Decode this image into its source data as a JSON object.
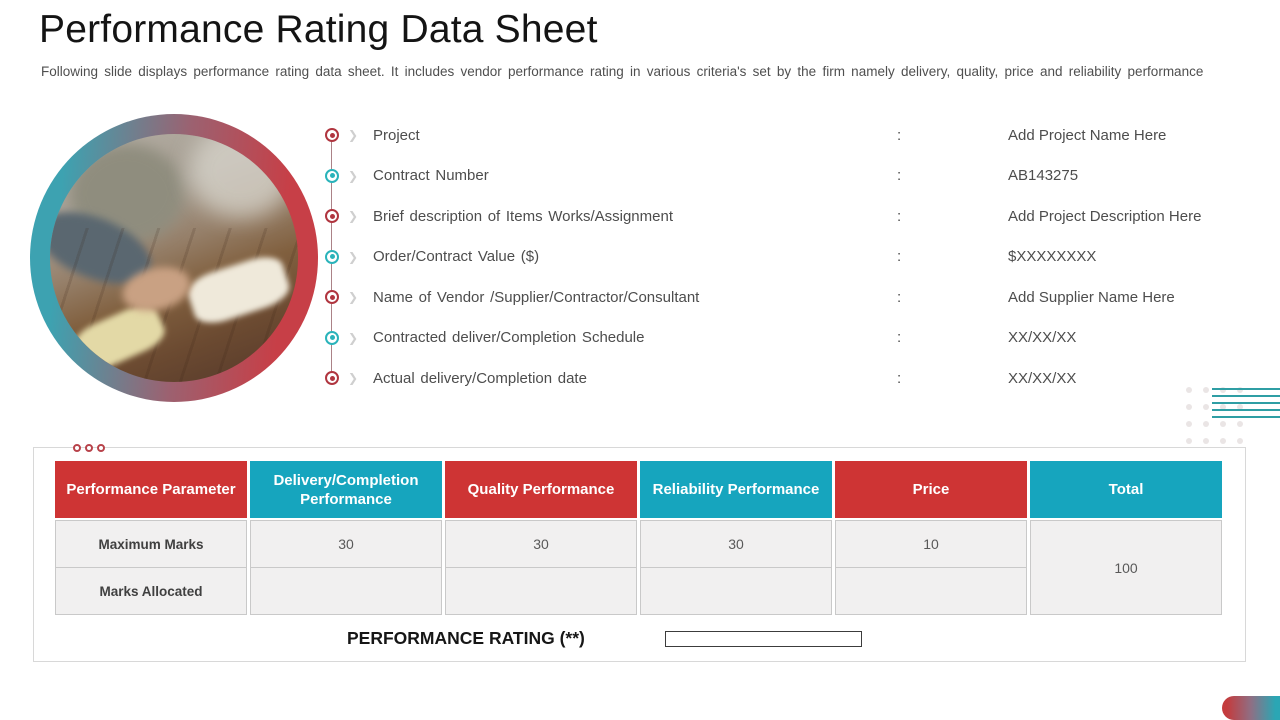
{
  "slide": {
    "title": "Performance Rating Data Sheet",
    "subtitle": "Following slide displays performance rating data sheet. It includes vendor performance rating in various criteria's set by the firm namely delivery, quality, price and reliability performance"
  },
  "details": {
    "colon": ":",
    "chevron_glyph": "❯",
    "items": [
      {
        "label": "Project",
        "value": "Add Project Name Here"
      },
      {
        "label": "Contract Number",
        "value": "AB143275"
      },
      {
        "label": "Brief description of Items Works/Assignment",
        "value": "Add Project Description Here"
      },
      {
        "label": "Order/Contract Value ($)",
        "value": "$XXXXXXXX"
      },
      {
        "label": "Name of Vendor /Supplier/Contractor/Consultant",
        "value": "Add Supplier Name Here"
      },
      {
        "label": "Contracted deliver/Completion Schedule",
        "value": "XX/XX/XX"
      },
      {
        "label": "Actual delivery/Completion date",
        "value": "XX/XX/XX"
      }
    ]
  },
  "table": {
    "headers": [
      "Performance Parameter",
      "Delivery/Completion Performance",
      "Quality Performance",
      "Reliability Performance",
      "Price",
      "Total"
    ],
    "rows": [
      {
        "label": "Maximum Marks",
        "values": [
          "30",
          "30",
          "30",
          "10"
        ]
      },
      {
        "label": "Marks Allocated",
        "values": [
          "",
          "",
          "",
          ""
        ]
      }
    ],
    "total": "100"
  },
  "rating": {
    "label": "PERFORMANCE RATING (**)",
    "value": ""
  },
  "colors": {
    "header_red": "#CE3434",
    "header_teal": "#16A5BE",
    "bullet_red": "#B0353F",
    "bullet_teal": "#2AB3BA",
    "accent_line_teal": "#2F9EA4",
    "pill_gradient_left": "#C43B3D",
    "pill_gradient_right": "#2BA6B4"
  }
}
